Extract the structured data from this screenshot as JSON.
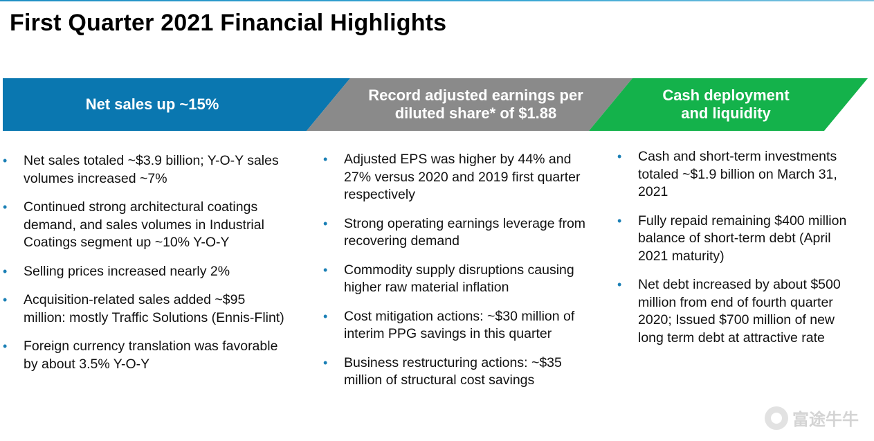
{
  "title": "First Quarter 2021 Financial Highlights",
  "colors": {
    "banner_blue": "#0a77b0",
    "banner_gray": "#8a8a8a",
    "banner_green": "#14b24b",
    "bullet": "#1a7fb5"
  },
  "columns": [
    {
      "header_lines": [
        "Net sales up ~15%"
      ],
      "bullets": [
        "Net sales totaled ~$3.9 billion; Y-O-Y sales volumes increased ~7%",
        "Continued strong architectural coatings demand, and sales volumes in Industrial Coatings segment up ~10% Y-O-Y",
        "Selling prices increased nearly 2%",
        "Acquisition-related sales added ~$95 million: mostly Traffic Solutions (Ennis-Flint)",
        "Foreign currency translation was favorable by about 3.5% Y-O-Y"
      ]
    },
    {
      "header_lines": [
        "Record adjusted earnings per",
        "diluted share* of $1.88"
      ],
      "bullets": [
        "Adjusted EPS was higher by 44% and 27% versus 2020 and 2019 first quarter respectively",
        "Strong operating earnings leverage from recovering demand",
        "Commodity supply disruptions causing higher raw material inflation",
        "Cost mitigation actions: ~$30 million of interim PPG savings in this quarter",
        "Business restructuring actions: ~$35 million of structural cost savings"
      ]
    },
    {
      "header_lines": [
        "Cash deployment",
        "and liquidity"
      ],
      "bullets": [
        "Cash and short-term investments totaled ~$1.9 billion on March 31, 2021",
        "Fully repaid remaining $400 million balance of short-term debt (April 2021 maturity)",
        "Net debt increased by about $500 million from end of fourth quarter 2020; Issued $700 million of new long term debt at attractive rate"
      ]
    }
  ],
  "bullet_glyph": "•",
  "watermark": "富途牛牛"
}
